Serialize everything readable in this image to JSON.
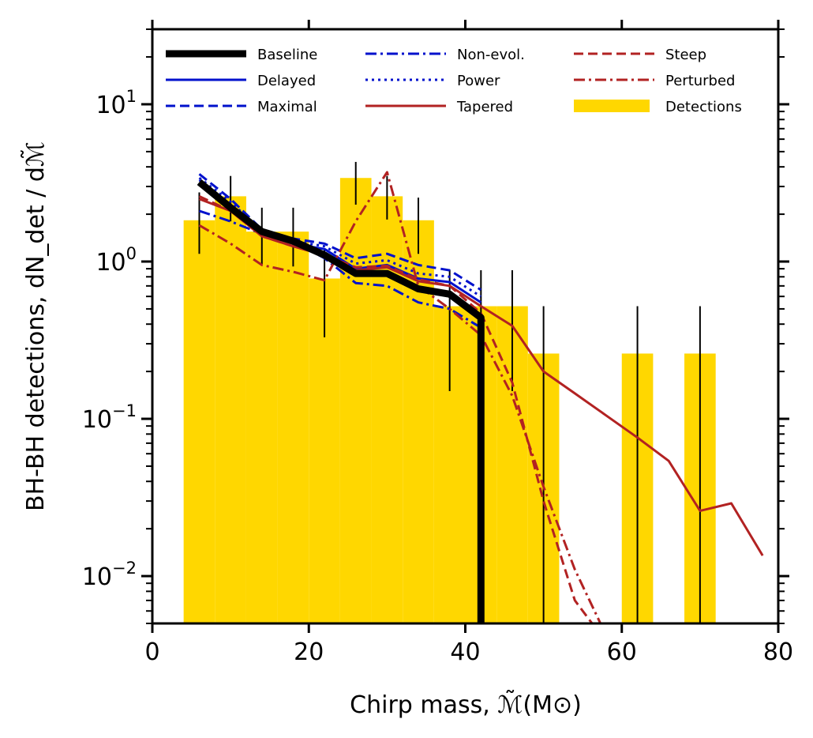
{
  "chart_data": {
    "type": "line",
    "xlabel": "Chirp mass, ℳ̃(M⊙)",
    "ylabel": "BH-BH detections, dN_det / dℳ̃",
    "xlim": [
      0,
      80
    ],
    "ylim": [
      0.005,
      30
    ],
    "yscale": "log",
    "grid": false,
    "legend_position": "top",
    "x_ticks": [
      0,
      20,
      40,
      60,
      80
    ],
    "x_tick_labels": [
      "0",
      "20",
      "40",
      "60",
      "80"
    ],
    "y_ticks": [
      0.01,
      0.1,
      1,
      10
    ],
    "y_tick_labels": [
      {
        "base": "10",
        "exp": "−2"
      },
      {
        "base": "10",
        "exp": "−1"
      },
      {
        "base": "10",
        "exp": "0"
      },
      {
        "base": "10",
        "exp": "1"
      }
    ],
    "detections": {
      "name": "Detections",
      "color": "#FFD700",
      "bins": [
        {
          "x0": 4,
          "x1": 8,
          "value": 1.83
        },
        {
          "x0": 8,
          "x1": 12,
          "value": 2.6
        },
        {
          "x0": 12,
          "x1": 16,
          "value": 1.55
        },
        {
          "x0": 16,
          "x1": 20,
          "value": 1.55
        },
        {
          "x0": 20,
          "x1": 24,
          "value": 0.78
        },
        {
          "x0": 24,
          "x1": 28,
          "value": 3.4
        },
        {
          "x0": 28,
          "x1": 32,
          "value": 2.6
        },
        {
          "x0": 32,
          "x1": 36,
          "value": 1.83
        },
        {
          "x0": 36,
          "x1": 40,
          "value": 0.52
        },
        {
          "x0": 40,
          "x1": 44,
          "value": 0.52
        },
        {
          "x0": 44,
          "x1": 48,
          "value": 0.52
        },
        {
          "x0": 48,
          "x1": 52,
          "value": 0.26
        },
        {
          "x0": 60,
          "x1": 64,
          "value": 0.26
        },
        {
          "x0": 68,
          "x1": 72,
          "value": 0.26
        }
      ]
    },
    "error_bars": [
      {
        "x": 6,
        "lo": 1.12,
        "hi": 2.75
      },
      {
        "x": 10,
        "lo": 1.8,
        "hi": 3.5
      },
      {
        "x": 14,
        "lo": 0.96,
        "hi": 2.2
      },
      {
        "x": 18,
        "lo": 0.93,
        "hi": 2.2
      },
      {
        "x": 22,
        "lo": 0.33,
        "hi": 1.2
      },
      {
        "x": 26,
        "lo": 2.3,
        "hi": 4.3
      },
      {
        "x": 30,
        "lo": 1.85,
        "hi": 3.5
      },
      {
        "x": 34,
        "lo": 1.12,
        "hi": 2.55
      },
      {
        "x": 38,
        "lo": 0.15,
        "hi": 0.88
      },
      {
        "x": 42,
        "lo": 0.005,
        "hi": 0.88
      },
      {
        "x": 46,
        "lo": 0.15,
        "hi": 0.88
      },
      {
        "x": 50,
        "lo": 0.005,
        "hi": 0.52
      },
      {
        "x": 62,
        "lo": 0.005,
        "hi": 0.52
      },
      {
        "x": 70,
        "lo": 0.005,
        "hi": 0.52
      }
    ],
    "series": [
      {
        "name": "Baseline",
        "color": "#000000",
        "style": "solid",
        "width": 9,
        "x": [
          6,
          10,
          14,
          18,
          22,
          26,
          30,
          34,
          38,
          42,
          42
        ],
        "y": [
          3.2,
          2.2,
          1.55,
          1.35,
          1.1,
          0.84,
          0.84,
          0.67,
          0.62,
          0.44,
          0.005
        ]
      },
      {
        "name": "Delayed",
        "color": "#0011CC",
        "style": "solid",
        "width": 3,
        "x": [
          6,
          10,
          14,
          18,
          22,
          26,
          30,
          34,
          38,
          42
        ],
        "y": [
          3.3,
          2.3,
          1.5,
          1.3,
          1.2,
          0.9,
          0.95,
          0.78,
          0.74,
          0.55
        ]
      },
      {
        "name": "Maximal",
        "color": "#0011CC",
        "style": "dashed",
        "width": 3,
        "x": [
          6,
          10,
          14,
          18,
          22,
          26,
          30,
          34,
          38,
          42
        ],
        "y": [
          3.6,
          2.5,
          1.6,
          1.4,
          1.3,
          1.05,
          1.12,
          0.95,
          0.88,
          0.66
        ]
      },
      {
        "name": "Non-evol.",
        "color": "#0011CC",
        "style": "dashdot",
        "width": 3,
        "x": [
          6,
          10,
          14,
          18,
          22,
          26,
          30,
          34,
          38,
          42
        ],
        "y": [
          2.1,
          1.8,
          1.5,
          1.35,
          1.05,
          0.73,
          0.7,
          0.55,
          0.5,
          0.38
        ]
      },
      {
        "name": "Power",
        "color": "#0011CC",
        "style": "dotted",
        "width": 3,
        "x": [
          6,
          10,
          14,
          18,
          22,
          26,
          30,
          34,
          38,
          42
        ],
        "y": [
          3.4,
          2.4,
          1.55,
          1.35,
          1.25,
          0.97,
          1.02,
          0.84,
          0.8,
          0.6
        ]
      },
      {
        "name": "Tapered",
        "color": "#B22222",
        "style": "solid",
        "width": 3,
        "x": [
          6,
          10,
          14,
          18,
          22,
          26,
          30,
          34,
          38,
          42,
          46,
          50,
          54,
          58,
          62,
          66,
          70,
          74,
          78
        ],
        "y": [
          2.5,
          2.1,
          1.45,
          1.25,
          1.1,
          0.88,
          0.92,
          0.75,
          0.7,
          0.52,
          0.39,
          0.2,
          0.145,
          0.105,
          0.076,
          0.054,
          0.026,
          0.029,
          0.0135
        ]
      },
      {
        "name": "Steep",
        "color": "#B22222",
        "style": "dashed",
        "width": 3,
        "x": [
          6,
          10,
          14,
          18,
          22,
          26,
          30,
          34,
          38,
          42,
          46,
          50,
          54,
          58
        ],
        "y": [
          2.6,
          2.1,
          1.45,
          1.25,
          1.1,
          0.92,
          0.94,
          0.77,
          0.7,
          0.47,
          0.17,
          0.03,
          0.007,
          0.0038
        ]
      },
      {
        "name": "Perturbed",
        "color": "#B22222",
        "style": "dashdot",
        "width": 3,
        "x": [
          6,
          10,
          14,
          18,
          22,
          26,
          30,
          34,
          38,
          42,
          46,
          50,
          54,
          58
        ],
        "y": [
          1.7,
          1.3,
          0.95,
          0.86,
          0.76,
          1.8,
          3.7,
          0.7,
          0.5,
          0.34,
          0.14,
          0.037,
          0.011,
          0.0042
        ]
      }
    ],
    "legend": [
      "Baseline",
      "Delayed",
      "Maximal",
      "Non-evol.",
      "Power",
      "Tapered",
      "Steep",
      "Perturbed",
      "Detections"
    ]
  }
}
